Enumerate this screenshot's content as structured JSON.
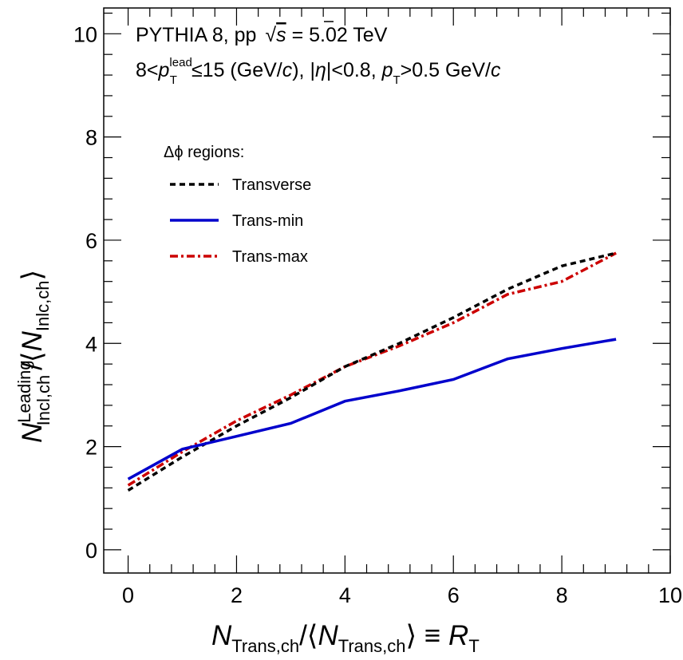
{
  "chart_data": {
    "type": "line",
    "annotations": {
      "line1": {
        "a": "PYTHIA 8, pp ",
        "sqrt": "√",
        "s": "s",
        "b": " = 5.02 TeV"
      },
      "line2": {
        "a": "8<",
        "p": "p",
        "sup": "lead",
        "sub": "T",
        "b": "≤15 (GeV/",
        "c1": "c",
        "d": "), |",
        "eta": "η",
        "e": "|<0.8, ",
        "p2": "p",
        "sub2": "T",
        "f": ">0.5 GeV/",
        "c2": "c"
      }
    },
    "legend_title": "Δϕ regions:",
    "xlabel": {
      "N": "N",
      "sub1": "Trans,ch",
      "mid": "/⟨",
      "N2": "N",
      "sub2": "Trans,ch",
      "end": "⟩ ≡ ",
      "R": "R",
      "sub3": "T"
    },
    "ylabel": {
      "N": "N",
      "sup": "Leading",
      "sub": "Incl,ch",
      "mid": "/⟨",
      "N2": "N",
      "sub2": "Inlc,ch",
      "end": "⟩"
    },
    "xlim": [
      -0.45,
      10
    ],
    "ylim": [
      -0.45,
      10.5
    ],
    "xticks": [
      "0",
      "2",
      "4",
      "6",
      "8",
      "10"
    ],
    "yticks": [
      "0",
      "2",
      "4",
      "6",
      "8",
      "10"
    ],
    "x": [
      0,
      1,
      2,
      3,
      4,
      5,
      6,
      7,
      8,
      9
    ],
    "series": [
      {
        "name": "Transverse",
        "color": "#000000",
        "style": "dashed",
        "values": [
          1.15,
          1.8,
          2.4,
          2.95,
          3.55,
          4.0,
          4.5,
          5.05,
          5.5,
          5.75
        ]
      },
      {
        "name": "Trans-min",
        "color": "#0000cc",
        "style": "solid",
        "values": [
          1.37,
          1.95,
          2.2,
          2.45,
          2.88,
          3.08,
          3.3,
          3.7,
          3.9,
          4.08
        ]
      },
      {
        "name": "Trans-max",
        "color": "#cc0000",
        "style": "dashdot",
        "values": [
          1.25,
          1.9,
          2.5,
          3.0,
          3.55,
          3.95,
          4.4,
          4.95,
          5.2,
          5.75
        ]
      }
    ]
  }
}
